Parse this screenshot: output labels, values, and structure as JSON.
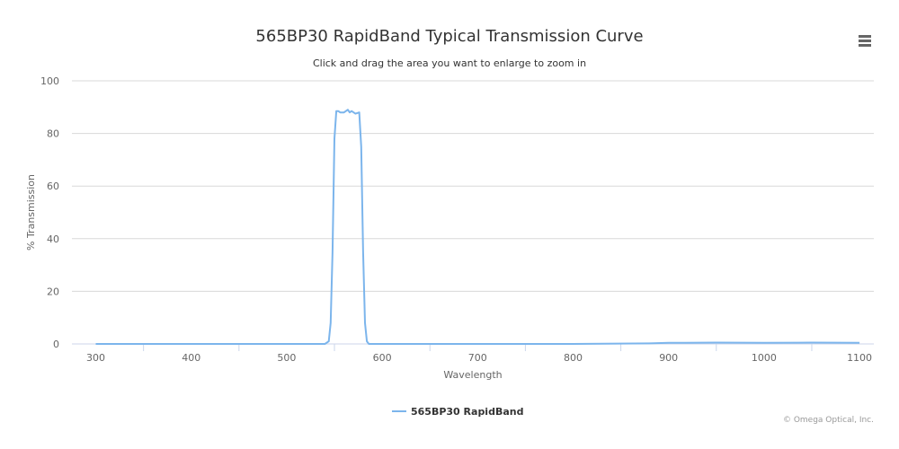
{
  "chart_data": {
    "type": "line",
    "title": "565BP30 RapidBand Typical Transmission Curve",
    "subtitle": "Click and drag the area you want to enlarge to zoom in",
    "xlabel": "Wavelength",
    "ylabel": "% Transmission",
    "xlim": [
      275,
      1115
    ],
    "ylim": [
      0,
      100
    ],
    "x_ticks": [
      300,
      400,
      500,
      600,
      700,
      800,
      900,
      1000,
      1100
    ],
    "y_ticks": [
      0,
      20,
      40,
      60,
      80,
      100
    ],
    "grid": true,
    "legend_position": "bottom-center",
    "series": [
      {
        "name": "565BP30 RapidBand",
        "color": "#7cb5ec",
        "x": [
          300,
          400,
          500,
          540,
          544,
          546,
          548,
          550,
          552,
          554,
          556,
          560,
          564,
          566,
          568,
          572,
          576,
          578,
          580,
          582,
          584,
          586,
          590,
          600,
          700,
          800,
          880,
          900,
          950,
          1000,
          1050,
          1100
        ],
        "y": [
          0,
          0,
          0,
          0,
          1,
          8,
          35,
          78,
          88.5,
          88.5,
          88,
          88,
          89,
          88,
          88.5,
          87.5,
          88,
          75,
          35,
          8,
          1,
          0,
          0,
          0,
          0,
          0,
          0.2,
          0.4,
          0.5,
          0.4,
          0.5,
          0.4
        ]
      }
    ]
  },
  "legend": {
    "label": "565BP30 RapidBand",
    "color": "#7cb5ec"
  },
  "credits": "© Omega Optical, Inc.",
  "colors": {
    "grid": "#d8d8d8",
    "axis": "#ccd6eb",
    "text": "#333333",
    "label": "#666666"
  }
}
